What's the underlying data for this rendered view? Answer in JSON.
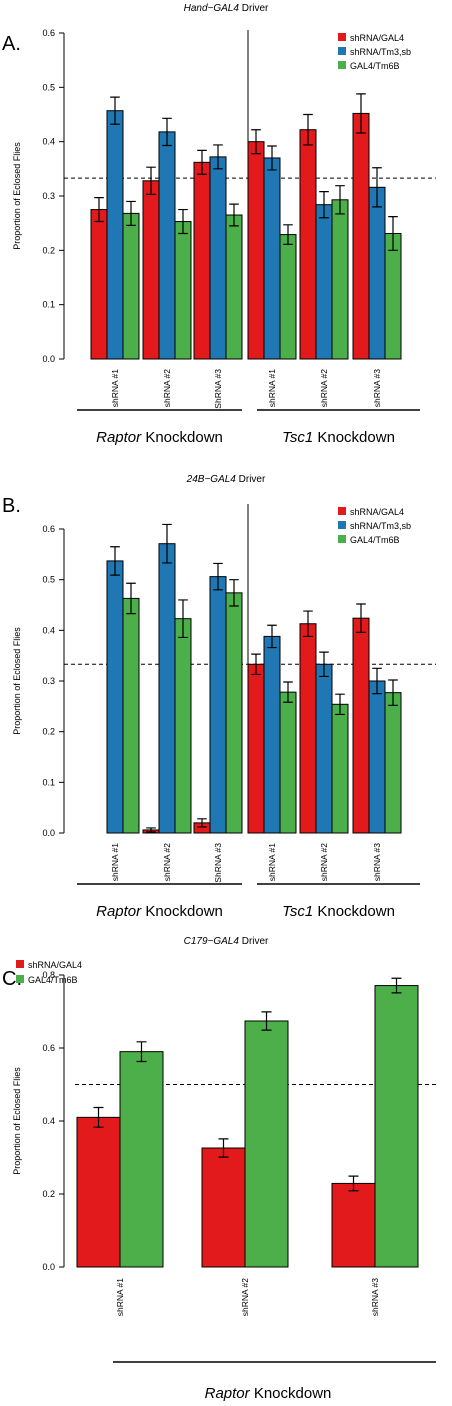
{
  "colors": {
    "red": "#E31A1C",
    "blue": "#1F78B4",
    "green": "#4DAF4A"
  },
  "chart_data": [
    {
      "type": "bar",
      "panel_letter": "A.",
      "title": "Hand−GAL4 Driver",
      "title_italic": "Hand−GAL4",
      "title_rest": " Driver",
      "ylabel": "Proportion of Eclosed Flies",
      "ylim": [
        0,
        0.6
      ],
      "yticks": [
        "0.0",
        "0.1",
        "0.2",
        "0.3",
        "0.4",
        "0.5",
        "0.6"
      ],
      "categories": [
        "shRNA #1",
        "shRNA #2",
        "ShRNA #3",
        "shRNA #1",
        "shRNA #2",
        "shRNA #3"
      ],
      "reference_line": 0.333,
      "separator_after_index": 2,
      "groups": [
        {
          "italic": "Raptor",
          "rest": " Knockdown"
        },
        {
          "italic": "Tsc1",
          "rest": " Knockdown"
        }
      ],
      "legend": "top-right",
      "series": [
        {
          "name": "shRNA/GAL4",
          "color": "red",
          "values": [
            0.275,
            0.328,
            0.362,
            0.4,
            0.422,
            0.452
          ],
          "errors": [
            0.022,
            0.025,
            0.022,
            0.022,
            0.028,
            0.036
          ]
        },
        {
          "name": "shRNA/Tm3,sb",
          "color": "blue",
          "values": [
            0.457,
            0.418,
            0.372,
            0.37,
            0.284,
            0.316
          ],
          "errors": [
            0.025,
            0.025,
            0.022,
            0.022,
            0.024,
            0.036
          ]
        },
        {
          "name": "GAL4/Tm6B",
          "color": "green",
          "values": [
            0.268,
            0.253,
            0.265,
            0.229,
            0.293,
            0.231
          ],
          "errors": [
            0.022,
            0.022,
            0.02,
            0.018,
            0.026,
            0.031
          ]
        }
      ]
    },
    {
      "type": "bar",
      "panel_letter": "B.",
      "title": "24B−GAL4 Driver",
      "title_italic": "24B−GAL4",
      "title_rest": " Driver",
      "ylabel": "Proportion of Eclosed Flies",
      "ylim": [
        0,
        0.6
      ],
      "yticks": [
        "0.0",
        "0.1",
        "0.2",
        "0.3",
        "0.4",
        "0.5",
        "0.6"
      ],
      "categories": [
        "shRNA #1",
        "shRNA #2",
        "ShRNA #3",
        "shRNA #1",
        "shRNA #2",
        "shRNA #3"
      ],
      "reference_line": 0.333,
      "separator_after_index": 2,
      "groups": [
        {
          "italic": "Raptor",
          "rest": " Knockdown"
        },
        {
          "italic": "Tsc1",
          "rest": " Knockdown"
        }
      ],
      "legend": "top-right",
      "series": [
        {
          "name": "shRNA/GAL4",
          "color": "red",
          "values": [
            0.0,
            0.006,
            0.02,
            0.333,
            0.413,
            0.424
          ],
          "errors": [
            0.0,
            0.004,
            0.008,
            0.02,
            0.025,
            0.028
          ]
        },
        {
          "name": "shRNA/Tm3,sb",
          "color": "blue",
          "values": [
            0.537,
            0.571,
            0.506,
            0.388,
            0.333,
            0.3
          ],
          "errors": [
            0.028,
            0.038,
            0.026,
            0.022,
            0.024,
            0.025
          ]
        },
        {
          "name": "GAL4/Tm6B",
          "color": "green",
          "values": [
            0.463,
            0.423,
            0.474,
            0.278,
            0.254,
            0.277
          ],
          "errors": [
            0.03,
            0.037,
            0.026,
            0.02,
            0.02,
            0.025
          ]
        }
      ]
    },
    {
      "type": "bar",
      "panel_letter": "C.",
      "title": "C179−GAL4 Driver",
      "title_italic": "C179−GAL4",
      "title_rest": " Driver",
      "ylabel": "Proportion of Eclosed Flies",
      "ylim": [
        0,
        0.8
      ],
      "yticks": [
        "0.0",
        "0.2",
        "0.4",
        "0.6",
        "0.8"
      ],
      "categories": [
        "shRNA #1",
        "shRNA #2",
        "shRNA #3"
      ],
      "reference_line": 0.5,
      "groups": [
        {
          "italic": "Raptor",
          "rest": " Knockdown"
        }
      ],
      "legend": "top-left",
      "series": [
        {
          "name": "shRNA/GAL4",
          "color": "red",
          "values": [
            0.41,
            0.326,
            0.229
          ],
          "errors": [
            0.027,
            0.025,
            0.02
          ]
        },
        {
          "name": "GAL4/Tm6B",
          "color": "green",
          "values": [
            0.59,
            0.674,
            0.771
          ],
          "errors": [
            0.027,
            0.025,
            0.02
          ]
        }
      ]
    }
  ]
}
